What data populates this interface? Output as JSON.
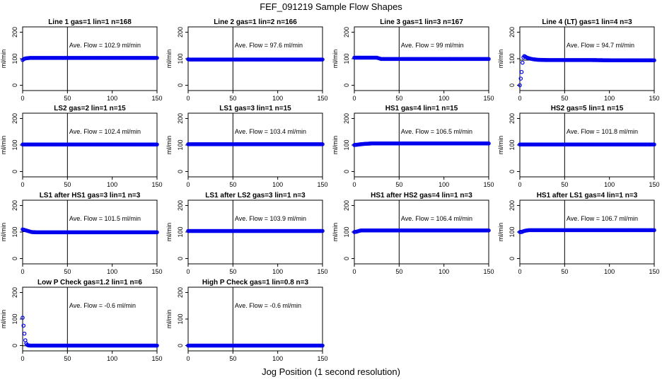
{
  "page": {
    "title": "FEF_091219  Sample Flow Shapes",
    "xlabel": "Jog Position (1 second resolution)"
  },
  "style": {
    "point_color": "#0000ee",
    "line_color": "#000000"
  },
  "chart_data": [
    {
      "type": "scatter",
      "title": "Line 1 gas=1 lin=1 n=168",
      "ylabel": "ml/min",
      "annotation": "Ave. Flow =  102.9  ml/min",
      "xlim": [
        0,
        150
      ],
      "ylim": [
        -20,
        220
      ],
      "xticks": [
        0,
        50,
        100,
        150
      ],
      "yticks": [
        0,
        100,
        200
      ],
      "vline": 50,
      "hline": 102.9,
      "x": [
        0,
        1,
        2,
        3,
        5,
        8,
        12,
        20,
        30,
        45,
        60,
        80,
        100,
        120,
        140,
        150
      ],
      "y": [
        95,
        98,
        100,
        101,
        102,
        103,
        103,
        103,
        103,
        103,
        103,
        103,
        103,
        103,
        103,
        103
      ]
    },
    {
      "type": "scatter",
      "title": "Line 2 gas=1 lin=2 n=166",
      "ylabel": "ml/min",
      "annotation": "Ave. Flow =  97.6  ml/min",
      "xlim": [
        0,
        150
      ],
      "ylim": [
        -20,
        220
      ],
      "xticks": [
        0,
        50,
        100,
        150
      ],
      "yticks": [
        0,
        100,
        200
      ],
      "vline": 50,
      "hline": 97.6,
      "x": [
        0,
        1,
        2,
        3,
        5,
        8,
        12,
        20,
        30,
        45,
        60,
        80,
        100,
        120,
        140,
        150
      ],
      "y": [
        98,
        97,
        97,
        97,
        97,
        97,
        97,
        97,
        97,
        97,
        97,
        97,
        97,
        97,
        97,
        97
      ]
    },
    {
      "type": "scatter",
      "title": "Line 3 gas=1 lin=3 n=167",
      "ylabel": "ml/min",
      "annotation": "Ave. Flow =  99  ml/min",
      "xlim": [
        0,
        150
      ],
      "ylim": [
        -20,
        220
      ],
      "xticks": [
        0,
        50,
        100,
        150
      ],
      "yticks": [
        0,
        100,
        200
      ],
      "vline": 50,
      "hline": 99,
      "x": [
        0,
        1,
        2,
        3,
        5,
        8,
        12,
        20,
        25,
        30,
        45,
        60,
        80,
        100,
        120,
        140,
        150
      ],
      "y": [
        104,
        104,
        104,
        104,
        104,
        104,
        104,
        104,
        104,
        99,
        99,
        99,
        99,
        99,
        99,
        99,
        99
      ]
    },
    {
      "type": "scatter",
      "title": "Line 4 (LT) gas=1 lin=4 n=3",
      "ylabel": "ml/min",
      "annotation": "Ave. Flow =  94.7  ml/min",
      "xlim": [
        0,
        150
      ],
      "ylim": [
        -20,
        220
      ],
      "xticks": [
        0,
        50,
        100,
        150
      ],
      "yticks": [
        0,
        100,
        200
      ],
      "vline": 50,
      "hline": 94.7,
      "x": [
        0,
        1,
        2,
        3,
        4,
        5,
        6,
        8,
        10,
        12,
        15,
        20,
        30,
        40,
        60,
        80,
        100,
        120,
        140,
        150
      ],
      "y": [
        0,
        25,
        50,
        85,
        105,
        110,
        108,
        104,
        102,
        100,
        98,
        96,
        95,
        95,
        95,
        95,
        94,
        94,
        94,
        94
      ]
    },
    {
      "type": "scatter",
      "title": "LS2 gas=2 lin=1 n=15",
      "ylabel": "ml/min",
      "annotation": "Ave. Flow =  102.4  ml/min",
      "xlim": [
        0,
        150
      ],
      "ylim": [
        -20,
        220
      ],
      "xticks": [
        0,
        50,
        100,
        150
      ],
      "yticks": [
        0,
        100,
        200
      ],
      "vline": 50,
      "hline": 102.4,
      "x": [
        0,
        5,
        10,
        20,
        30,
        45,
        60,
        80,
        100,
        120,
        140,
        150
      ],
      "y": [
        102,
        102,
        102,
        102,
        102,
        102,
        102,
        102,
        102,
        102,
        102,
        102
      ]
    },
    {
      "type": "scatter",
      "title": "LS1 gas=3 lin=1 n=15",
      "ylabel": "ml/min",
      "annotation": "Ave. Flow =  103.4  ml/min",
      "xlim": [
        0,
        150
      ],
      "ylim": [
        -20,
        220
      ],
      "xticks": [
        0,
        50,
        100,
        150
      ],
      "yticks": [
        0,
        100,
        200
      ],
      "vline": 50,
      "hline": 103.4,
      "x": [
        0,
        5,
        10,
        20,
        30,
        45,
        60,
        80,
        100,
        120,
        140,
        150
      ],
      "y": [
        103,
        103,
        103,
        103,
        103,
        103,
        103,
        103,
        103,
        103,
        103,
        103
      ]
    },
    {
      "type": "scatter",
      "title": "HS1 gas=4 lin=1 n=15",
      "ylabel": "ml/min",
      "annotation": "Ave. Flow =  106.5  ml/min",
      "xlim": [
        0,
        150
      ],
      "ylim": [
        -20,
        220
      ],
      "xticks": [
        0,
        50,
        100,
        150
      ],
      "yticks": [
        0,
        100,
        200
      ],
      "vline": 50,
      "hline": 106.5,
      "x": [
        0,
        5,
        10,
        15,
        20,
        30,
        45,
        60,
        80,
        100,
        120,
        140,
        150
      ],
      "y": [
        100,
        102,
        104,
        105,
        106,
        106,
        106,
        106,
        106,
        106,
        106,
        106,
        106
      ]
    },
    {
      "type": "scatter",
      "title": "HS2 gas=5 lin=1 n=15",
      "ylabel": "ml/min",
      "annotation": "Ave. Flow =  101.8  ml/min",
      "xlim": [
        0,
        150
      ],
      "ylim": [
        -20,
        220
      ],
      "xticks": [
        0,
        50,
        100,
        150
      ],
      "yticks": [
        0,
        100,
        200
      ],
      "vline": 50,
      "hline": 101.8,
      "x": [
        0,
        5,
        10,
        20,
        30,
        45,
        60,
        80,
        100,
        120,
        140,
        150
      ],
      "y": [
        102,
        102,
        102,
        102,
        102,
        102,
        102,
        102,
        102,
        102,
        102,
        102
      ]
    },
    {
      "type": "scatter",
      "title": "LS1 after HS1 gas=3 lin=1 n=3",
      "ylabel": "ml/min",
      "annotation": "Ave. Flow =  101.5  ml/min",
      "xlim": [
        0,
        150
      ],
      "ylim": [
        -20,
        220
      ],
      "xticks": [
        0,
        50,
        100,
        150
      ],
      "yticks": [
        0,
        100,
        200
      ],
      "vline": 50,
      "hline": 101.5,
      "x": [
        0,
        2,
        4,
        6,
        8,
        10,
        15,
        20,
        30,
        45,
        60,
        80,
        100,
        120,
        140,
        150
      ],
      "y": [
        110,
        108,
        106,
        104,
        102,
        100,
        99,
        99,
        99,
        99,
        99,
        99,
        99,
        99,
        99,
        99
      ]
    },
    {
      "type": "scatter",
      "title": "LS1 after LS2 gas=3 lin=1 n=3",
      "ylabel": "ml/min",
      "annotation": "Ave. Flow =  103.9  ml/min",
      "xlim": [
        0,
        150
      ],
      "ylim": [
        -20,
        220
      ],
      "xticks": [
        0,
        50,
        100,
        150
      ],
      "yticks": [
        0,
        100,
        200
      ],
      "vline": 50,
      "hline": 103.9,
      "x": [
        0,
        5,
        10,
        20,
        30,
        45,
        60,
        80,
        100,
        120,
        140,
        150
      ],
      "y": [
        104,
        104,
        104,
        104,
        104,
        104,
        104,
        104,
        104,
        104,
        104,
        104
      ]
    },
    {
      "type": "scatter",
      "title": "HS1 after HS2 gas=4 lin=1 n=3",
      "ylabel": "ml/min",
      "annotation": "Ave. Flow =  106.4  ml/min",
      "xlim": [
        0,
        150
      ],
      "ylim": [
        -20,
        220
      ],
      "xticks": [
        0,
        50,
        100,
        150
      ],
      "yticks": [
        0,
        100,
        200
      ],
      "vline": 50,
      "hline": 106.4,
      "x": [
        0,
        2,
        4,
        6,
        8,
        10,
        15,
        20,
        30,
        45,
        60,
        80,
        100,
        120,
        140,
        150
      ],
      "y": [
        100,
        101,
        103,
        105,
        106,
        106,
        106,
        106,
        106,
        106,
        106,
        106,
        106,
        106,
        106,
        106
      ]
    },
    {
      "type": "scatter",
      "title": "HS1 after LS1 gas=4 lin=1 n=3",
      "ylabel": "ml/min",
      "annotation": "Ave. Flow =  106.7  ml/min",
      "xlim": [
        0,
        150
      ],
      "ylim": [
        -20,
        220
      ],
      "xticks": [
        0,
        50,
        100,
        150
      ],
      "yticks": [
        0,
        100,
        200
      ],
      "vline": 50,
      "hline": 106.7,
      "x": [
        0,
        2,
        4,
        6,
        8,
        10,
        15,
        20,
        30,
        45,
        60,
        80,
        100,
        120,
        140,
        150
      ],
      "y": [
        100,
        100,
        103,
        105,
        106,
        107,
        107,
        107,
        107,
        107,
        107,
        107,
        107,
        107,
        107,
        107
      ]
    },
    {
      "type": "scatter",
      "title": "Low P Check gas=1.2 lin=1 n=6",
      "ylabel": "ml/min",
      "annotation": "Ave. Flow =  -0.6  ml/min",
      "xlim": [
        0,
        150
      ],
      "ylim": [
        -20,
        220
      ],
      "xticks": [
        0,
        50,
        100,
        150
      ],
      "yticks": [
        0,
        100,
        200
      ],
      "vline": 50,
      "hline": -0.6,
      "x": [
        0,
        1,
        2,
        3,
        4,
        5,
        6,
        8,
        10,
        15,
        20,
        30,
        45,
        60,
        80,
        100,
        120,
        140,
        150
      ],
      "y": [
        105,
        75,
        45,
        20,
        8,
        3,
        1,
        0,
        0,
        0,
        0,
        0,
        0,
        0,
        0,
        0,
        0,
        0,
        0
      ]
    },
    {
      "type": "scatter",
      "title": "High P Check gas=1 lin=0.8 n=3",
      "ylabel": "ml/min",
      "annotation": "Ave. Flow =  -0.6  ml/min",
      "xlim": [
        0,
        150
      ],
      "ylim": [
        -20,
        220
      ],
      "xticks": [
        0,
        50,
        100,
        150
      ],
      "yticks": [
        0,
        100,
        200
      ],
      "vline": 50,
      "hline": -0.6,
      "x": [
        0,
        5,
        10,
        20,
        30,
        45,
        60,
        80,
        100,
        120,
        140,
        150
      ],
      "y": [
        0,
        0,
        0,
        0,
        0,
        0,
        0,
        0,
        0,
        0,
        0,
        0
      ]
    }
  ]
}
